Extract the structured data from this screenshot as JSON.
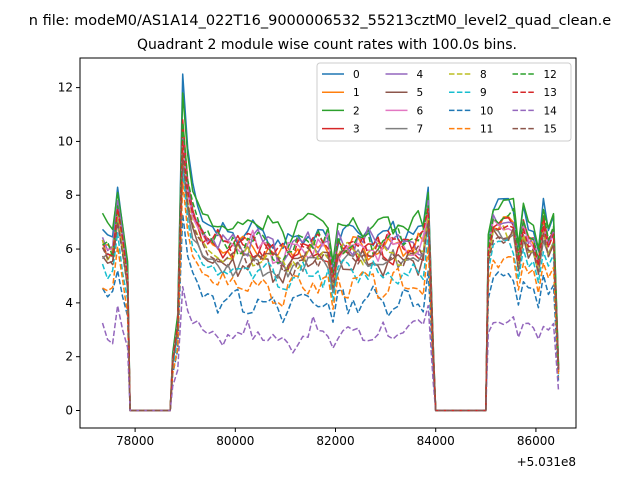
{
  "chart_data": {
    "type": "line",
    "suptitle": "n file: modeM0/AS1A14_022T16_9000006532_55213cztM0_level2_quad_clean.e",
    "title": "Quadrant 2 module wise count rates with 100.0s bins.",
    "xlabel": "",
    "ylabel": "",
    "offset_label": "+5.031e8",
    "x_offset": 503100000,
    "xlim": [
      76900,
      86800
    ],
    "ylim": [
      -0.65,
      13.1
    ],
    "x_ticks": [
      78000,
      80000,
      82000,
      84000,
      86000
    ],
    "x_tick_labels": [
      "78000",
      "80000",
      "82000",
      "84000",
      "86000"
    ],
    "y_ticks": [
      0,
      2,
      4,
      6,
      8,
      10,
      12
    ],
    "y_tick_labels": [
      "0",
      "2",
      "4",
      "6",
      "8",
      "10",
      "12"
    ],
    "grid": false,
    "legend_position": "top-right",
    "legend_columns": 4,
    "segments": [
      {
        "start": 77350,
        "end": 77850,
        "points": [
          0,
          1,
          2,
          3,
          4,
          5
        ]
      },
      {
        "start": 78750,
        "end": 83950,
        "points": [
          0,
          1,
          2,
          3,
          4,
          5,
          6,
          7,
          8,
          9,
          10,
          11,
          12,
          13,
          14,
          15,
          16,
          17,
          18,
          19,
          20,
          21,
          22,
          23,
          24,
          25,
          26,
          27,
          28,
          29,
          30,
          31,
          32,
          33,
          34,
          35,
          36,
          37,
          38,
          39,
          40,
          41,
          42,
          43,
          44,
          45,
          46,
          47,
          48,
          49,
          50,
          51,
          52
        ]
      },
      {
        "start": 85050,
        "end": 86350,
        "points": [
          0,
          1,
          2,
          3,
          4,
          5,
          6,
          7,
          8,
          9,
          10,
          11,
          12,
          13,
          14
        ]
      }
    ],
    "gaps": [
      [
        77850,
        78750
      ],
      [
        83950,
        85050
      ]
    ],
    "series": [
      {
        "name": "0",
        "color": "#1f77b4",
        "dash": "solid",
        "peak": 12.5,
        "base": 6.6,
        "p1": 6.9,
        "p3": 7.6,
        "flare": 8.3
      },
      {
        "name": "1",
        "color": "#ff7f0e",
        "dash": "solid",
        "peak": 10.3,
        "base": 6.1,
        "p1": 6.4,
        "p3": 7.0,
        "flare": 7.4
      },
      {
        "name": "2",
        "color": "#2ca02c",
        "dash": "solid",
        "peak": 11.8,
        "base": 6.9,
        "p1": 7.1,
        "p3": 7.7,
        "flare": 8.1
      },
      {
        "name": "3",
        "color": "#d62728",
        "dash": "solid",
        "peak": 10.8,
        "base": 6.0,
        "p1": 6.2,
        "p3": 7.1,
        "flare": 7.6
      },
      {
        "name": "4",
        "color": "#9467bd",
        "dash": "solid",
        "peak": 10.1,
        "base": 6.3,
        "p1": 6.4,
        "p3": 7.0,
        "flare": 7.8
      },
      {
        "name": "5",
        "color": "#8c564b",
        "dash": "solid",
        "peak": 9.5,
        "base": 5.5,
        "p1": 5.8,
        "p3": 6.5,
        "flare": 7.0
      },
      {
        "name": "6",
        "color": "#e377c2",
        "dash": "solid",
        "peak": 9.9,
        "base": 6.1,
        "p1": 6.2,
        "p3": 6.9,
        "flare": 7.3
      },
      {
        "name": "7",
        "color": "#7f7f7f",
        "dash": "solid",
        "peak": 9.2,
        "base": 5.5,
        "p1": 5.9,
        "p3": 6.6,
        "flare": 7.1
      },
      {
        "name": "8",
        "color": "#bcbd22",
        "dash": "dashed",
        "peak": 9.6,
        "base": 5.8,
        "p1": 6.1,
        "p3": 6.6,
        "flare": 7.2
      },
      {
        "name": "9",
        "color": "#17becf",
        "dash": "dashed",
        "peak": 8.9,
        "base": 5.1,
        "p1": 5.3,
        "p3": 6.1,
        "flare": 6.6
      },
      {
        "name": "10",
        "color": "#1f77b4",
        "dash": "dashed",
        "peak": 7.3,
        "base": 4.1,
        "p1": 4.5,
        "p3": 4.9,
        "flare": 5.2
      },
      {
        "name": "11",
        "color": "#ff7f0e",
        "dash": "dashed",
        "peak": 8.5,
        "base": 4.7,
        "p1": 4.6,
        "p3": 5.6,
        "flare": 6.1
      },
      {
        "name": "12",
        "color": "#2ca02c",
        "dash": "dashed",
        "peak": 10.7,
        "base": 6.3,
        "p1": 6.3,
        "p3": 7.2,
        "flare": 7.6
      },
      {
        "name": "13",
        "color": "#d62728",
        "dash": "dashed",
        "peak": 10.0,
        "base": 6.2,
        "p1": 6.3,
        "p3": 6.9,
        "flare": 7.5
      },
      {
        "name": "14",
        "color": "#9467bd",
        "dash": "dashed",
        "peak": 4.6,
        "base": 2.9,
        "p1": 3.0,
        "p3": 3.4,
        "flare": 3.9
      },
      {
        "name": "15",
        "color": "#8c564b",
        "dash": "dashed",
        "peak": 9.5,
        "base": 5.7,
        "p1": 5.9,
        "p3": 6.5,
        "flare": 7.0
      }
    ]
  }
}
